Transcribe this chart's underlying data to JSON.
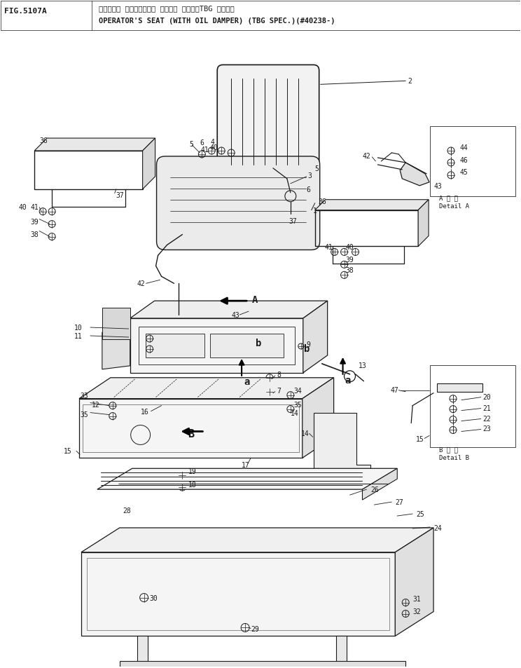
{
  "title_japanese": "オペレータ シート（オイル ダンパー ツキ）（TBG ショウ）",
  "title_english": "OPERATOR'S SEAT (WITH OIL DAMPER) (TBG SPEC.)(#40238-)",
  "fig_label": "FIG.5107A",
  "bg_color": "#ffffff",
  "line_color": "#1a1a1a",
  "text_color": "#1a1a1a",
  "fig_width": 7.44,
  "fig_height": 9.54,
  "dpi": 100
}
